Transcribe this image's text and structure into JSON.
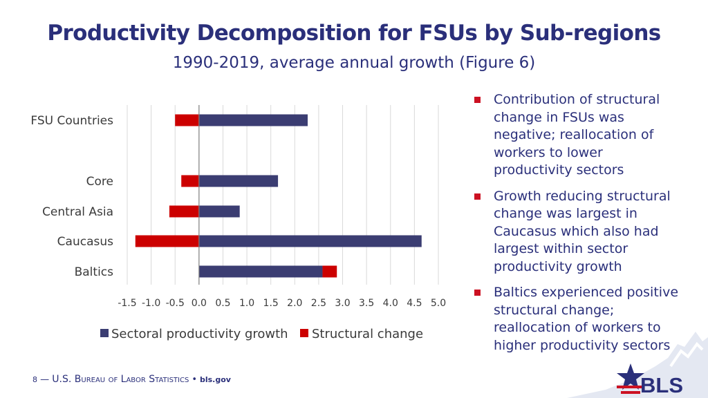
{
  "slide": {
    "title": "Productivity Decomposition for FSUs by Sub-regions",
    "subtitle": "1990-2019, average annual growth (Figure 6)"
  },
  "bullets": [
    "Contribution of structural change in FSUs was negative; reallocation of workers to lower productivity sectors",
    "Growth reducing structural change was largest in Caucasus which also had largest within sector productivity growth",
    "Baltics experienced positive structural change; reallocation of workers to higher productivity sectors"
  ],
  "footer": {
    "page_number": "8",
    "dash": "—",
    "organization": "U.S. Bureau of Labor Statistics",
    "separator": "•",
    "url": "bls.gov"
  },
  "logo": {
    "text": "BLS"
  },
  "colors": {
    "title": "#2a2f7a",
    "sectoral": "#3b3d72",
    "structural": "#cc0000",
    "bullet": "#cc1122",
    "grid": "#d9d9d9",
    "axis": "#7f7f7f"
  },
  "chart_data": {
    "type": "bar",
    "orientation": "horizontal",
    "stacked": true,
    "categories": [
      "FSU Countries",
      "Core",
      "Central Asia",
      "Caucasus",
      "Baltics"
    ],
    "series": [
      {
        "name": "Sectoral productivity growth",
        "values": [
          2.27,
          1.65,
          0.85,
          4.65,
          2.58
        ],
        "color": "#3b3d72"
      },
      {
        "name": "Structural change",
        "values": [
          -0.5,
          -0.37,
          -0.62,
          -1.33,
          0.3
        ],
        "color": "#cc0000"
      }
    ],
    "xlim": [
      -1.5,
      5.0
    ],
    "xticks": [
      "-1.5",
      "-1.0",
      "-0.5",
      "0.0",
      "0.5",
      "1.0",
      "1.5",
      "2.0",
      "2.5",
      "3.0",
      "3.5",
      "4.0",
      "4.5",
      "5.0"
    ],
    "grid": true,
    "legend_position": "bottom"
  }
}
